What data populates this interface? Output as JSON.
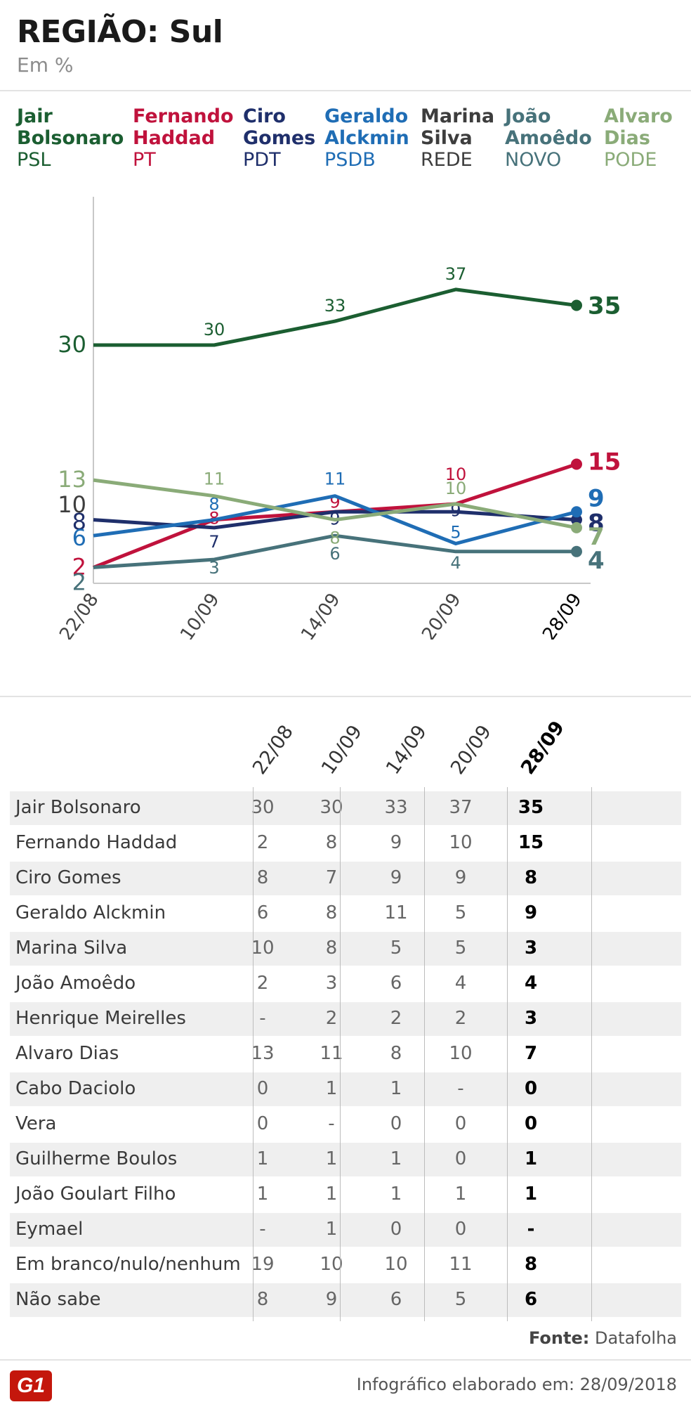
{
  "header": {
    "title": "REGIÃO: Sul",
    "subtitle": "Em %"
  },
  "legend": [
    {
      "name": "Jair Bolsonaro",
      "party": "PSL",
      "color": "#1b5e31"
    },
    {
      "name": "Fernando Haddad",
      "party": "PT",
      "color": "#c0123c"
    },
    {
      "name": "Ciro Gomes",
      "party": "PDT",
      "color": "#1f2f6b"
    },
    {
      "name": "Geraldo Alckmin",
      "party": "PSDB",
      "color": "#1f6db5"
    },
    {
      "name": "Marina Silva",
      "party": "REDE",
      "color": "#3d3d3d"
    },
    {
      "name": "João Amoêdo",
      "party": "NOVO",
      "color": "#47727a"
    },
    {
      "name": "Alvaro Dias",
      "party": "PODE",
      "color": "#8aab78"
    }
  ],
  "chart_data": {
    "type": "line",
    "title": "REGIÃO: Sul",
    "ylabel": "Em %",
    "categories": [
      "22/08",
      "10/09",
      "14/09",
      "20/09",
      "28/09"
    ],
    "ylim": [
      0,
      40
    ],
    "series": [
      {
        "name": "Jair Bolsonaro",
        "color": "#1b5e31",
        "values": [
          30,
          30,
          33,
          37,
          35
        ]
      },
      {
        "name": "Fernando Haddad",
        "color": "#c0123c",
        "values": [
          2,
          8,
          9,
          10,
          15
        ]
      },
      {
        "name": "Ciro Gomes",
        "color": "#1f2f6b",
        "values": [
          8,
          7,
          9,
          9,
          8
        ]
      },
      {
        "name": "Geraldo Alckmin",
        "color": "#1f6db5",
        "values": [
          6,
          8,
          11,
          5,
          9
        ]
      },
      {
        "name": "João Amoêdo",
        "color": "#47727a",
        "values": [
          2,
          3,
          6,
          4,
          4
        ]
      },
      {
        "name": "Alvaro Dias",
        "color": "#8aab78",
        "values": [
          13,
          11,
          8,
          10,
          7
        ]
      }
    ],
    "extra_start_labels": [
      {
        "name": "Marina Silva",
        "value": 10,
        "color": "#3d3d3d"
      }
    ]
  },
  "table": {
    "columns": [
      "22/08",
      "10/09",
      "14/09",
      "20/09",
      "28/09"
    ],
    "rows": [
      {
        "name": "Jair Bolsonaro",
        "values": [
          "30",
          "30",
          "33",
          "37",
          "35"
        ]
      },
      {
        "name": "Fernando Haddad",
        "values": [
          "2",
          "8",
          "9",
          "10",
          "15"
        ]
      },
      {
        "name": "Ciro Gomes",
        "values": [
          "8",
          "7",
          "9",
          "9",
          "8"
        ]
      },
      {
        "name": "Geraldo Alckmin",
        "values": [
          "6",
          "8",
          "11",
          "5",
          "9"
        ]
      },
      {
        "name": "Marina Silva",
        "values": [
          "10",
          "8",
          "5",
          "5",
          "3"
        ]
      },
      {
        "name": "João Amoêdo",
        "values": [
          "2",
          "3",
          "6",
          "4",
          "4"
        ]
      },
      {
        "name": "Henrique Meirelles",
        "values": [
          "-",
          "2",
          "2",
          "2",
          "3"
        ]
      },
      {
        "name": "Alvaro Dias",
        "values": [
          "13",
          "11",
          "8",
          "10",
          "7"
        ]
      },
      {
        "name": "Cabo Daciolo",
        "values": [
          "0",
          "1",
          "1",
          "-",
          "0"
        ]
      },
      {
        "name": "Vera",
        "values": [
          "0",
          "-",
          "0",
          "0",
          "0"
        ]
      },
      {
        "name": "Guilherme Boulos",
        "values": [
          "1",
          "1",
          "1",
          "0",
          "1"
        ]
      },
      {
        "name": "João Goulart Filho",
        "values": [
          "1",
          "1",
          "1",
          "1",
          "1"
        ]
      },
      {
        "name": "Eymael",
        "values": [
          "-",
          "1",
          "0",
          "0",
          "-"
        ]
      },
      {
        "name": "Em branco/nulo/nenhum",
        "values": [
          "19",
          "10",
          "10",
          "11",
          "8"
        ]
      },
      {
        "name": "Não sabe",
        "values": [
          "8",
          "9",
          "6",
          "5",
          "6"
        ]
      }
    ]
  },
  "footer": {
    "source_label": "Fonte:",
    "source_value": "Datafolha",
    "logo": "G1",
    "credit": "Infográfico elaborado em: 28/09/2018"
  }
}
